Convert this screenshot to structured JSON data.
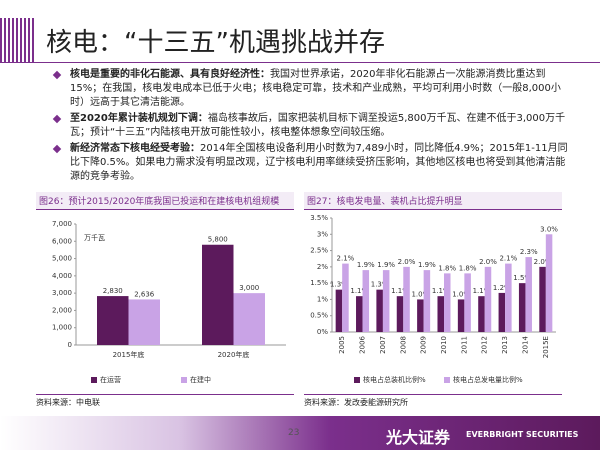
{
  "header": {
    "title": "核电：“十三五”机遇挑战并存"
  },
  "bullets": [
    {
      "lead": "核电是重要的非化石能源、具有良好经济性：",
      "text": "我国对世界承诺，2020年非化石能源占一次能源消费比重达到15%；在我国，核电发电成本已低于火电；核电稳定可靠，技术和产业成熟，平均可利用小时数（一般8,000小时）远高于其它清洁能源。"
    },
    {
      "lead": "至2020年累计装机规划下调：",
      "text": "福岛核事故后，国家把装机目标下调至投运5,800万千瓦、在建不低于3,000万千瓦；预计“十三五”内陆核电开放可能性较小，核电整体想象空间较压缩。"
    },
    {
      "lead": "新经济常态下核电经受考验：",
      "text": "2014年全国核电设备利用小时数为7,489小时，同比降低4.9%；2015年1-11月同比下降0.5%。如果电力需求没有明显改观，辽宁核电利用率继续受挤压影响，其他地区核电也将受到其他清洁能源的竞争考验。"
    }
  ],
  "chart_data": [
    {
      "type": "bar",
      "title": "图26：预计2015/2020年底我国已投运和在建核电机组规模",
      "y_label": "万千瓦",
      "categories": [
        "2015年底",
        "2020年底"
      ],
      "series": [
        {
          "name": "在运营",
          "color": "#5c1a5c",
          "values": [
            2830,
            5800
          ],
          "value_labels": [
            "2,830",
            "5,800"
          ]
        },
        {
          "name": "在建中",
          "color": "#c9a3e6",
          "values": [
            2636,
            3000
          ],
          "value_labels": [
            "2,636",
            "3,000"
          ]
        }
      ],
      "ylim": [
        0,
        7000
      ],
      "yticks": [
        0,
        {
          "value": 1000,
          "label": "1,000"
        },
        {
          "value": 2000,
          "label": "2,000"
        },
        {
          "value": 3000,
          "label": "3,000"
        },
        {
          "value": 4000,
          "label": "4,000"
        },
        {
          "value": 5000,
          "label": "5,000"
        },
        {
          "value": 6000,
          "label": "6,000"
        },
        {
          "value": 7000,
          "label": "7,000"
        }
      ],
      "legend": "bottom",
      "source": "资料来源：中电联"
    },
    {
      "type": "bar",
      "title": "图27：核电发电量、装机占比提升明显",
      "categories": [
        "2005",
        "2006",
        "2007",
        "2008",
        "2009",
        "2010",
        "2011",
        "2012",
        "2013",
        "2014",
        "2015E"
      ],
      "series": [
        {
          "name": "核电占总装机比例%",
          "color": "#5c1a5c",
          "values": [
            1.3,
            1.1,
            1.3,
            1.1,
            1.0,
            1.1,
            1.0,
            1.1,
            1.2,
            1.5,
            2.0
          ],
          "value_labels": [
            "1.3%",
            "1.1%",
            "1.3%",
            "1.1%",
            "1.0%",
            "1.1%",
            "1.0%",
            "1.1%",
            "1.2%",
            "1.5%",
            "2.0%"
          ]
        },
        {
          "name": "核电占总发电量比例%",
          "color": "#c9a3e6",
          "values": [
            2.1,
            1.9,
            1.9,
            2.0,
            1.9,
            1.8,
            1.8,
            2.0,
            2.1,
            2.3,
            3.0
          ],
          "value_labels": [
            "2.1%",
            "1.9%",
            "1.9%",
            "2.0%",
            "1.9%",
            "1.8%",
            "1.8%",
            "2.0%",
            "2.1%",
            "2.3%",
            "3.0%"
          ]
        }
      ],
      "ylim": [
        0,
        3.5
      ],
      "yticks": [
        {
          "value": 0,
          "label": "0%"
        },
        {
          "value": 0.5,
          "label": "0.5%"
        },
        {
          "value": 1,
          "label": "1%"
        },
        {
          "value": 1.5,
          "label": "1.5%"
        },
        {
          "value": 2,
          "label": "2%"
        },
        {
          "value": 2.5,
          "label": "2.5%"
        },
        {
          "value": 3,
          "label": "3%"
        },
        {
          "value": 3.5,
          "label": "3.5%"
        }
      ],
      "legend": "bottom",
      "source": "资料来源：发改委能源研究所"
    }
  ],
  "footer": {
    "page": "23",
    "brand": "光大证券",
    "brand_en": "EVERBRIGHT SECURITIES"
  }
}
